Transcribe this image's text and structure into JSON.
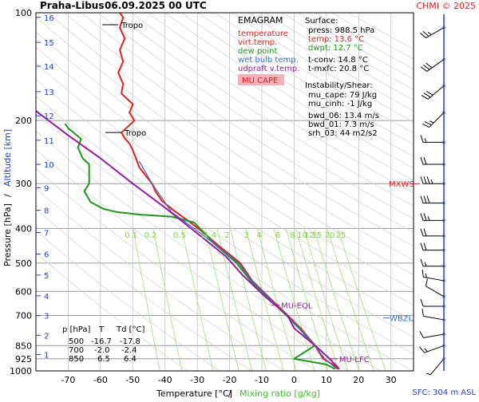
{
  "header": {
    "station": "Praha-Libus",
    "datetime": "06.09.2025 00 UTC",
    "credit": "CHMI © 2025"
  },
  "legend": {
    "title": "EMAGRAM",
    "items": [
      {
        "label": "temperature",
        "color": "#e02020"
      },
      {
        "label": "virt.temp.",
        "color": "#e02020"
      },
      {
        "label": "dew point",
        "color": "#1a9a1a"
      },
      {
        "label": "wet bulb temp.",
        "color": "#2f6fd8"
      },
      {
        "label": "udpraft v.temp.",
        "color": "#9a1aa0"
      }
    ],
    "badge": "MU CAPE"
  },
  "surface": {
    "heading": "Surface:",
    "press": "press: 988.5 hPa",
    "temp": "temp: 13.6 °C",
    "dwpt": "dwpt: 12.7 °C",
    "tconv": "t-conv: 14.8 °C",
    "tmxfc": "t-mxfc: 20.8 °C"
  },
  "instability": {
    "heading": "Instability/Shear:",
    "mu_cape": "mu_cape: 79 J/kg",
    "mu_cinh": "mu_cinh: -1 J/kg",
    "bwd_06": "bwd_06: 13.4 m/s",
    "bwd_01": "bwd_01: 7.3 m/s",
    "srh_03": "srh_03: 44 m2/s2"
  },
  "table": {
    "headers": [
      "p [hPa]",
      "T",
      "Td [°C]"
    ],
    "rows": [
      [
        "500",
        "-16.7",
        "-17.8"
      ],
      [
        "700",
        "-2.0",
        "-2.4"
      ],
      [
        "850",
        "6.5",
        "6.4"
      ]
    ]
  },
  "footer": {
    "sfc": "SFC: 304 m ASL"
  },
  "axes": {
    "xlabel_temp": "Temperature [°C]",
    "xlabel_sep": "/",
    "xlabel_mix": "Mixing ratio [g/kg]",
    "ylabel_pres": "Pressure [hPa]",
    "ylabel_sep": "/",
    "ylabel_alt": "Altitude [km]"
  },
  "chart_data": {
    "type": "line",
    "x_axis": "temperature (°C)",
    "y_axis": "pressure (hPa, log)",
    "xlim": [
      -80,
      37
    ],
    "ylim": [
      1000,
      100
    ],
    "temp_ticks": [
      -70,
      -60,
      -50,
      -40,
      -30,
      -20,
      -10,
      0,
      10,
      20,
      30
    ],
    "pressure_ticks": [
      100,
      200,
      300,
      400,
      500,
      600,
      700,
      850,
      925,
      1000
    ],
    "altitude_ticks": [
      {
        "km": "1",
        "p": 900
      },
      {
        "km": "2",
        "p": 795
      },
      {
        "km": "3",
        "p": 701
      },
      {
        "km": "4",
        "p": 617
      },
      {
        "km": "5",
        "p": 540
      },
      {
        "km": "6",
        "p": 472
      },
      {
        "km": "7",
        "p": 411
      },
      {
        "km": "8",
        "p": 356
      },
      {
        "km": "9",
        "p": 308
      },
      {
        "km": "10",
        "p": 265
      },
      {
        "km": "11",
        "p": 227
      },
      {
        "km": "12",
        "p": 194
      },
      {
        "km": "13",
        "p": 166
      },
      {
        "km": "14",
        "p": 141
      },
      {
        "km": "15",
        "p": 121
      },
      {
        "km": "16",
        "p": 103
      }
    ],
    "mixing_ratio_labels": [
      "0.1",
      "0.2",
      "0.5",
      "1",
      "1.4",
      "2",
      "3",
      "4",
      "6",
      "8",
      "10",
      "12",
      "15",
      "20",
      "25"
    ],
    "mixing_ratio_label_temps": [
      -50.5,
      -44.5,
      -35.5,
      -28.5,
      -26,
      -20.8,
      -14.8,
      -10.8,
      -5,
      -0.5,
      2.5,
      4.7,
      7,
      11,
      14.5
    ],
    "series": [
      {
        "name": "temperature",
        "color": "#e02020",
        "points": [
          [
            13.6,
            988
          ],
          [
            12,
            960
          ],
          [
            9,
            925
          ],
          [
            6.5,
            850
          ],
          [
            2,
            760
          ],
          [
            -2,
            700
          ],
          [
            -8,
            620
          ],
          [
            -13,
            560
          ],
          [
            -16.7,
            500
          ],
          [
            -23,
            450
          ],
          [
            -29,
            405
          ],
          [
            -33,
            380
          ],
          [
            -37,
            358
          ],
          [
            -41,
            335
          ],
          [
            -43,
            315
          ],
          [
            -44,
            300
          ],
          [
            -46,
            285
          ],
          [
            -48,
            270
          ],
          [
            -49,
            255
          ],
          [
            -50,
            242
          ],
          [
            -51,
            232
          ],
          [
            -52.5,
            224
          ],
          [
            -53.5,
            216
          ],
          [
            -49.5,
            200
          ],
          [
            -51,
            190
          ],
          [
            -50,
            180
          ],
          [
            -53.5,
            168
          ],
          [
            -53,
            158
          ],
          [
            -54.5,
            147
          ],
          [
            -53,
            137
          ],
          [
            -54,
            127
          ],
          [
            -52.5,
            118
          ],
          [
            -54,
            110
          ],
          [
            -53,
            103
          ],
          [
            -54,
            100
          ]
        ]
      },
      {
        "name": "dew point",
        "color": "#1a9a1a",
        "points": [
          [
            12.7,
            988
          ],
          [
            10,
            960
          ],
          [
            0,
            925
          ],
          [
            6.4,
            850
          ],
          [
            1.5,
            760
          ],
          [
            -2.4,
            700
          ],
          [
            -8.5,
            620
          ],
          [
            -13.5,
            560
          ],
          [
            -17.8,
            500
          ],
          [
            -25,
            440
          ],
          [
            -28,
            410
          ],
          [
            -31,
            385
          ],
          [
            -38,
            371
          ],
          [
            -48,
            366
          ],
          [
            -55,
            360
          ],
          [
            -59,
            353
          ],
          [
            -63,
            338
          ],
          [
            -65,
            315
          ],
          [
            -63.5,
            300
          ],
          [
            -63.5,
            282
          ],
          [
            -63.5,
            265
          ],
          [
            -65.5,
            255
          ],
          [
            -67,
            238
          ],
          [
            -66,
            225
          ],
          [
            -70,
            210
          ],
          [
            -71,
            204
          ]
        ]
      },
      {
        "name": "wet bulb temp.",
        "color": "#2f6fd8",
        "points": [
          [
            13.2,
            988
          ],
          [
            9.5,
            925
          ],
          [
            6.4,
            850
          ],
          [
            -2.2,
            700
          ],
          [
            -13.2,
            560
          ],
          [
            -17.2,
            500
          ],
          [
            -25,
            440
          ],
          [
            -31,
            400
          ],
          [
            -38,
            360
          ],
          [
            -44,
            300
          ],
          [
            -48,
            260
          ]
        ]
      },
      {
        "name": "udpraft v.temp.",
        "color": "#9a1aa0",
        "points": [
          [
            14,
            988
          ],
          [
            11,
            925
          ],
          [
            6.5,
            850
          ],
          [
            0,
            760
          ],
          [
            -2,
            700
          ],
          [
            -9,
            620
          ],
          [
            -16,
            540
          ],
          [
            -21,
            480
          ],
          [
            -29,
            420
          ],
          [
            -40,
            350
          ],
          [
            -50,
            300
          ],
          [
            -60,
            255
          ],
          [
            -70,
            220
          ],
          [
            -80,
            188
          ]
        ]
      }
    ],
    "annotations": [
      {
        "label": "Tropo",
        "t": -55,
        "p": 108
      },
      {
        "label": "Tropo",
        "t": -54,
        "p": 216
      },
      {
        "label": "MU-EQL",
        "t": -7,
        "p": 655
      },
      {
        "label": "MU-LFC",
        "t": 11,
        "p": 925
      },
      {
        "label": "MXWS",
        "t": 37,
        "p": 300
      },
      {
        "label": "WBZL",
        "t": 37,
        "p": 730
      }
    ],
    "wind_barbs": [
      {
        "p": 110,
        "dir": 240,
        "kt": 25
      },
      {
        "p": 135,
        "dir": 235,
        "kt": 30
      },
      {
        "p": 160,
        "dir": 230,
        "kt": 30
      },
      {
        "p": 190,
        "dir": 225,
        "kt": 25
      },
      {
        "p": 230,
        "dir": 270,
        "kt": 15
      },
      {
        "p": 265,
        "dir": 270,
        "kt": 20
      },
      {
        "p": 300,
        "dir": 270,
        "kt": 35
      },
      {
        "p": 340,
        "dir": 270,
        "kt": 30
      },
      {
        "p": 380,
        "dir": 270,
        "kt": 25
      },
      {
        "p": 420,
        "dir": 270,
        "kt": 20
      },
      {
        "p": 460,
        "dir": 270,
        "kt": 20
      },
      {
        "p": 510,
        "dir": 270,
        "kt": 15
      },
      {
        "p": 560,
        "dir": 280,
        "kt": 15
      },
      {
        "p": 620,
        "dir": 300,
        "kt": 10
      },
      {
        "p": 660,
        "dir": 270,
        "kt": 10
      },
      {
        "p": 720,
        "dir": 280,
        "kt": 10
      },
      {
        "p": 790,
        "dir": 260,
        "kt": 10
      },
      {
        "p": 850,
        "dir": 250,
        "kt": 15
      },
      {
        "p": 925,
        "dir": 220,
        "kt": 5
      }
    ]
  }
}
